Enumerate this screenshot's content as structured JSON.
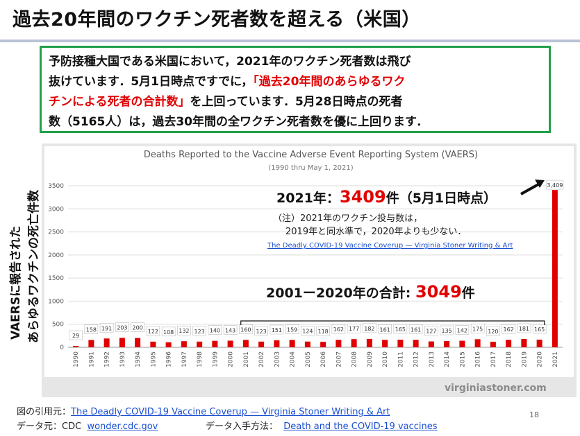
{
  "slide": {
    "title": "過去20年間のワクチン死者数を超える（米国）",
    "note_line1": "予防接種大国である米国において，2021年のワクチン死者数は飛び",
    "note_line2_a": "抜けています．5月1日時点ですでに，",
    "note_line2_b": "「過去20年間のあらゆるワク",
    "note_line3_a": "チンによる死者の合計数」",
    "note_line3_b": "を上回っています．5月28日時点の死者",
    "note_line4": "数（5165人）は，過去30年間の全ワクチン死者数を優に上回ります．",
    "ylabel_line1": "VAERSに報告された",
    "ylabel_line2": "あらゆるワクチンの死亡件数",
    "page_number": "18"
  },
  "annotations": {
    "y2021_prefix": "2021年：",
    "y2021_value": "3409",
    "y2021_suffix": "件（5月1日時点）",
    "note_line1": "（注）2021年のワクチン投与数は，",
    "note_line2": "2019年と同水準で，2020年よりも少ない．",
    "link_text": "The Deadly COVID-19 Vaccine Coverup — Virginia Stoner Writing & Art",
    "sum_prefix": "2001ー2020年の合計: ",
    "sum_value": "3049",
    "sum_suffix": "件"
  },
  "footer": {
    "source_label": "図の引用元：",
    "source_link": "The Deadly COVID-19 Vaccine Coverup — Virginia Stoner Writing & Art",
    "data_label": "データ元：CDC",
    "data_link": "wonder.cdc.gov",
    "method_label": "データ入手方法：",
    "method_link": "Death and the COVID-19 vaccines"
  },
  "chart_data": {
    "type": "bar",
    "title": "Deaths Reported to the Vaccine Adverse Event Reporting System (VAERS)",
    "subtitle": "(1990 thru May 1, 2021)",
    "xlabel": "",
    "ylabel": "",
    "watermark": "virginiastoner.com",
    "ylim": [
      0,
      3500
    ],
    "yticks": [
      0,
      500,
      1000,
      1500,
      2000,
      2500,
      3000,
      3500
    ],
    "grid": true,
    "categories": [
      "1990",
      "1991",
      "1992",
      "1993",
      "1994",
      "1995",
      "1996",
      "1997",
      "1998",
      "1999",
      "2000",
      "2001",
      "2002",
      "2003",
      "2004",
      "2005",
      "2006",
      "2007",
      "2008",
      "2009",
      "2010",
      "2011",
      "2012",
      "2013",
      "2014",
      "2015",
      "2016",
      "2017",
      "2018",
      "2019",
      "2020",
      "2021"
    ],
    "values": [
      29,
      158,
      191,
      203,
      200,
      122,
      108,
      132,
      123,
      140,
      143,
      160,
      123,
      151,
      159,
      124,
      118,
      162,
      177,
      182,
      161,
      165,
      161,
      127,
      135,
      142,
      175,
      120,
      162,
      181,
      165,
      3409
    ],
    "value_labels": [
      "29",
      "158",
      "191",
      "203",
      "200",
      "122",
      "108",
      "132",
      "123",
      "140",
      "143",
      "160",
      "123",
      "151",
      "159",
      "124",
      "118",
      "162",
      "177",
      "182",
      "161",
      "165",
      "161",
      "127",
      "135",
      "142",
      "175",
      "120",
      "162",
      "181",
      "165",
      "3,409"
    ],
    "bar_color": "#e00000"
  }
}
